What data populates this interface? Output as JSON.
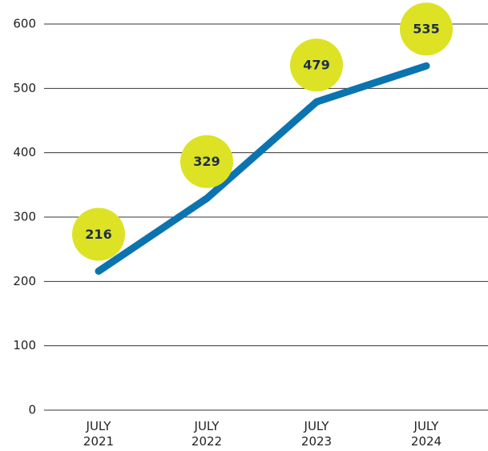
{
  "chart_data": {
    "type": "line",
    "categories": [
      "JULY 2021",
      "JULY 2022",
      "JULY 2023",
      "JULY 2024"
    ],
    "values": [
      216,
      329,
      479,
      535
    ],
    "color": "#0b74b0",
    "label_color": "#dde224",
    "ylim": [
      0,
      600
    ],
    "yticks": [
      0,
      100,
      200,
      300,
      400,
      500,
      600
    ],
    "grid": true
  }
}
